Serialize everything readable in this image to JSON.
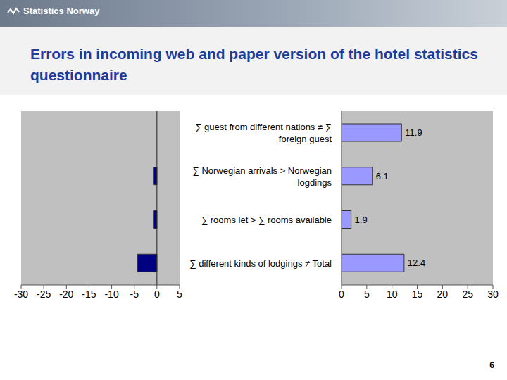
{
  "title": "Errors in incoming web and paper version of the hotel statistics questionnaire",
  "logo": "Statistics Norway",
  "page_number": "6",
  "chart_data": [
    {
      "type": "bar",
      "orientation": "horizontal",
      "categories": [
        null,
        null,
        null,
        null
      ],
      "values": [
        0,
        -0.8,
        -0.8,
        -4.3
      ],
      "color": "#000080",
      "xlim": [
        -30,
        5
      ],
      "xticks": [
        -30,
        -25,
        -20,
        -15,
        -10,
        -5,
        0,
        5
      ]
    },
    {
      "type": "bar",
      "orientation": "horizontal",
      "categories": [
        "∑ guest from different nations ≠ ∑ foreign guest",
        "∑ Norwegian arrivals > Norwegian logdings",
        "∑ rooms let > ∑ rooms available",
        "∑ different kinds of lodgings ≠ Total"
      ],
      "values": [
        11.9,
        6.1,
        1.9,
        12.4
      ],
      "color": "#9999ff",
      "xlim": [
        0,
        30
      ],
      "xticks": [
        0,
        5,
        10,
        15,
        20,
        25,
        30
      ],
      "data_labels": true
    }
  ]
}
